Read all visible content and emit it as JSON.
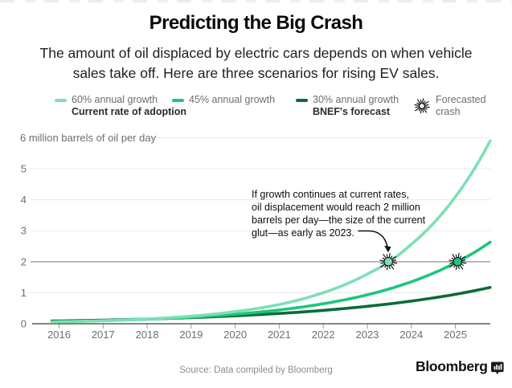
{
  "header": {
    "title": "Predicting the Big Crash",
    "subtitle_line1": "The amount of oil displaced by electric cars depends on when vehicle",
    "subtitle_line2": "sales take off. Here are three scenarios for rising EV sales."
  },
  "legend": {
    "items": [
      {
        "label": "60% annual growth",
        "sublabel": "Current rate of adoption",
        "color": "#7de0b5",
        "type": "line"
      },
      {
        "label": "45% annual growth",
        "sublabel": "",
        "color": "#1ec57d",
        "type": "line"
      },
      {
        "label": "30% annual growth",
        "sublabel": "BNEF's forecast",
        "color": "#0c6b37",
        "type": "line"
      },
      {
        "label": "Forecasted",
        "sublabel": "crash",
        "type": "starburst"
      }
    ]
  },
  "chart_data": {
    "type": "line",
    "title": "Predicting the Big Crash",
    "y_top_label": "6 million barrels of oil per day",
    "y_ticks": [
      0,
      1,
      2,
      3,
      4,
      5,
      6
    ],
    "x_ticks": [
      2016,
      2017,
      2018,
      2019,
      2020,
      2021,
      2022,
      2023,
      2024,
      2025
    ],
    "xlim": [
      2015.84,
      2025.79
    ],
    "ylim": [
      0,
      6
    ],
    "grid": "horizontal",
    "legend_position": "top",
    "glut_line_value": 2,
    "series": [
      {
        "name": "60% annual growth",
        "color": "#7de0b5",
        "x": [
          2015.84,
          2016,
          2017,
          2018,
          2019,
          2020,
          2021,
          2022,
          2023,
          2023.5,
          2024,
          2024.5,
          2025,
          2025.79
        ],
        "values": [
          0.055,
          0.059,
          0.095,
          0.152,
          0.243,
          0.39,
          0.62,
          1.0,
          1.6,
          2.0,
          2.56,
          3.23,
          4.09,
          5.9
        ]
      },
      {
        "name": "45% annual growth",
        "color": "#1ec57d",
        "x": [
          2015.84,
          2016,
          2017,
          2018,
          2019,
          2020,
          2021,
          2022,
          2023,
          2024,
          2025,
          2025.79
        ],
        "values": [
          0.065,
          0.069,
          0.1,
          0.146,
          0.211,
          0.306,
          0.444,
          0.644,
          0.933,
          1.353,
          1.96,
          2.63
        ]
      },
      {
        "name": "30% annual growth",
        "color": "#0c6b37",
        "x": [
          2015.84,
          2016,
          2017,
          2018,
          2019,
          2020,
          2021,
          2022,
          2023,
          2024,
          2025,
          2025.79
        ],
        "values": [
          0.087,
          0.09,
          0.116,
          0.151,
          0.197,
          0.256,
          0.332,
          0.432,
          0.562,
          0.73,
          0.949,
          1.17
        ]
      }
    ],
    "crash_markers": [
      {
        "series": "60% annual growth",
        "x": 2023.48,
        "value": 2,
        "color": "#7de0b5"
      },
      {
        "series": "45% annual growth",
        "x": 2025.05,
        "value": 2,
        "color": "#1ec57d"
      }
    ],
    "colors": {
      "grid": "#e9e9e9",
      "glut_line": "#878787",
      "axis": "#3c3c3c",
      "tick": "#9a9a9a",
      "tick_label": "#6e6e6e"
    }
  },
  "annotation": {
    "lines": [
      "If growth continues at current rates,",
      "oil displacement would reach 2 million",
      "barrels per day—the size of the current",
      "glut—as early as 2023."
    ]
  },
  "footer": {
    "source": "Source: Data compiled by Bloomberg",
    "brand": "Bloomberg"
  }
}
